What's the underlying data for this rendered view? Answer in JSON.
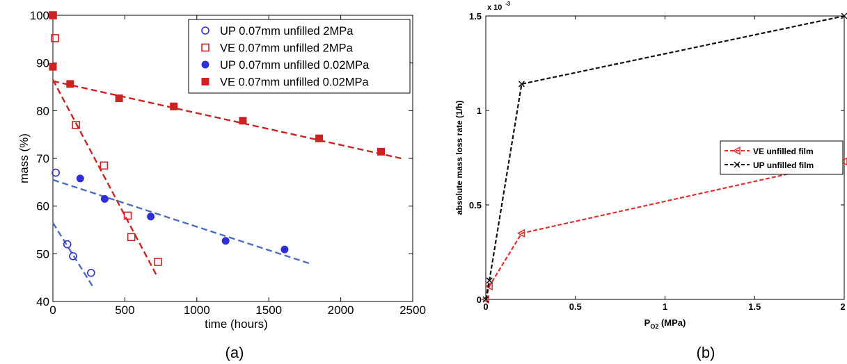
{
  "captions": {
    "left": "(a)",
    "right": "(b)"
  },
  "chart_data": [
    {
      "type": "scatter",
      "xlabel": "time (hours)",
      "ylabel": "mass (%)",
      "xlim": [
        0,
        2500
      ],
      "ylim": [
        40,
        100
      ],
      "x_ticks": [
        "0",
        "500",
        "1000",
        "1500",
        "2000",
        "2500"
      ],
      "y_ticks": [
        "40",
        "50",
        "60",
        "70",
        "80",
        "90",
        "100"
      ],
      "grid": false,
      "legend_position": "top-right",
      "series": [
        {
          "name": "UP 0.07mm unfilled 2MPa",
          "color": "#2f2fd8",
          "marker": "circle-open",
          "points": [
            [
              20,
              67
            ],
            [
              100,
              52
            ],
            [
              140,
              49.5
            ],
            [
              265,
              46
            ]
          ],
          "fit": [
            [
              0,
              56.5
            ],
            [
              280,
              43
            ]
          ]
        },
        {
          "name": "VE 0.07mm unfilled 2MPa",
          "color": "#cc2222",
          "marker": "square-open",
          "points": [
            [
              0,
              100
            ],
            [
              15,
              95.2
            ],
            [
              160,
              77
            ],
            [
              355,
              68.5
            ],
            [
              520,
              58
            ],
            [
              545,
              53.5
            ],
            [
              730,
              48.3
            ]
          ],
          "fit": [
            [
              0,
              86.5
            ],
            [
              720,
              45.5
            ]
          ]
        },
        {
          "name": "UP 0.07mm unfilled 0.02MPa",
          "color": "#2f2fd8",
          "marker": "circle-filled",
          "points": [
            [
              190,
              65.8
            ],
            [
              360,
              61.5
            ],
            [
              680,
              57.8
            ],
            [
              1200,
              52.7
            ],
            [
              1610,
              50.9
            ]
          ],
          "fit": [
            [
              0,
              65.5
            ],
            [
              1780,
              48
            ]
          ]
        },
        {
          "name": "VE 0.07mm unfilled 0.02MPa",
          "color": "#cc2222",
          "marker": "square-filled",
          "points": [
            [
              0,
              100
            ],
            [
              0,
              89.2
            ],
            [
              120,
              85.6
            ],
            [
              460,
              82.6
            ],
            [
              840,
              80.9
            ],
            [
              1320,
              77.9
            ],
            [
              1850,
              74.2
            ],
            [
              2280,
              71.4
            ]
          ],
          "fit": [
            [
              0,
              86.2
            ],
            [
              2420,
              70
            ]
          ]
        }
      ],
      "fit_line_colors": {
        "UP": "#4a6fc0",
        "VE": "#cc2222"
      }
    },
    {
      "type": "line",
      "xlabel": "P",
      "xlabel_subscript": "O2",
      "xlabel_unit": " (MPa)",
      "ylabel": "absolute mass loss rate (1/h)",
      "y_exponent_label": "x 10",
      "y_exponent_power": "-3",
      "xlim": [
        0,
        2
      ],
      "ylim": [
        0,
        1.5
      ],
      "x_ticks": [
        "0",
        "0.5",
        "1",
        "1.5",
        "2"
      ],
      "y_ticks": [
        "0",
        "0.5",
        "1",
        "1.5"
      ],
      "grid": false,
      "legend_position": "right",
      "series": [
        {
          "name": "VE unfilled film",
          "color": "#e03030",
          "marker": "triangle-left",
          "points": [
            [
              0,
              0.0
            ],
            [
              0.02,
              0.07
            ],
            [
              0.2,
              0.35
            ],
            [
              2,
              0.73
            ]
          ]
        },
        {
          "name": "UP unfilled film",
          "color": "#111111",
          "marker": "x",
          "points": [
            [
              0,
              0.0
            ],
            [
              0.02,
              0.1
            ],
            [
              0.2,
              1.14
            ],
            [
              2,
              1.5
            ]
          ]
        }
      ]
    }
  ]
}
